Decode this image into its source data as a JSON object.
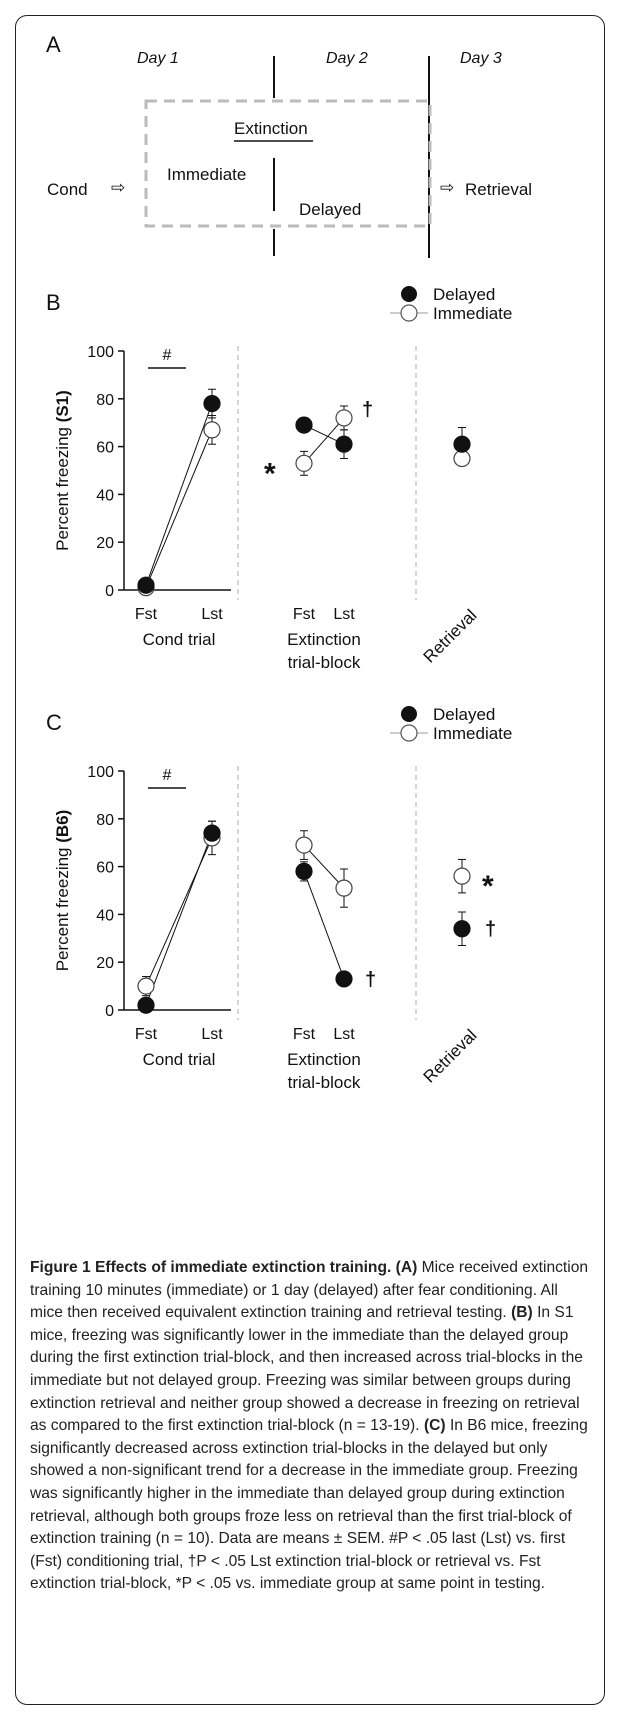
{
  "diagram": {
    "panel_label": "A",
    "day1": "Day 1",
    "day2": "Day 2",
    "day3": "Day 3",
    "extinction": "Extinction",
    "immediate": "Immediate",
    "delayed": "Delayed",
    "cond": "Cond",
    "retrieval": "Retrieval",
    "arrow": "⇨"
  },
  "chart_data": [
    {
      "type": "line",
      "panel_label": "B",
      "ylabel": "Percent freezing",
      "ylabel_strain": "(S1)",
      "ylim": [
        0,
        100
      ],
      "yticks": [
        0,
        20,
        40,
        60,
        80,
        100
      ],
      "groups": [
        {
          "name": "Cond trial",
          "ticks": [
            "Fst",
            "Lst"
          ]
        },
        {
          "name": "Extinction trial-block",
          "ticks": [
            "Fst",
            "Lst"
          ]
        },
        {
          "name": "Retrieval",
          "ticks": []
        }
      ],
      "series": [
        {
          "name": "Delayed",
          "marker": "filled",
          "cond": [
            2,
            78
          ],
          "cond_err": [
            1,
            6
          ],
          "ext": [
            69,
            61
          ],
          "ext_err": [
            3,
            6
          ],
          "ret": 61,
          "ret_err": 7
        },
        {
          "name": "Immediate",
          "marker": "open",
          "cond": [
            1,
            67
          ],
          "cond_err": [
            1,
            6
          ],
          "ext": [
            53,
            72
          ],
          "ext_err": [
            5,
            5
          ],
          "ret": 55,
          "ret_err": 3
        }
      ],
      "annotations": {
        "cond_hash": "#",
        "ext_immediate": "†",
        "ext_star": "*"
      }
    },
    {
      "type": "line",
      "panel_label": "C",
      "ylabel": "Percent freezing",
      "ylabel_strain": "(B6)",
      "ylim": [
        0,
        100
      ],
      "yticks": [
        0,
        20,
        40,
        60,
        80,
        100
      ],
      "groups": [
        {
          "name": "Cond trial",
          "ticks": [
            "Fst",
            "Lst"
          ]
        },
        {
          "name": "Extinction trial-block",
          "ticks": [
            "Fst",
            "Lst"
          ]
        },
        {
          "name": "Retrieval",
          "ticks": []
        }
      ],
      "series": [
        {
          "name": "Delayed",
          "marker": "filled",
          "cond": [
            2,
            74
          ],
          "cond_err": [
            1,
            5
          ],
          "ext": [
            58,
            13
          ],
          "ext_err": [
            4,
            2
          ],
          "ret": 34,
          "ret_err": 7
        },
        {
          "name": "Immediate",
          "marker": "open",
          "cond": [
            10,
            72
          ],
          "cond_err": [
            4,
            7
          ],
          "ext": [
            69,
            51
          ],
          "ext_err": [
            6,
            8
          ],
          "ret": 56,
          "ret_err": 7
        }
      ],
      "annotations": {
        "cond_hash": "#",
        "ext_delayed": "†",
        "ret_delayed": "†",
        "ret_immediate": "*"
      }
    }
  ],
  "caption": {
    "title": "Figure 1 Effects of immediate extinction training.",
    "a_label": "(A)",
    "a_text": "Mice received extinction training 10 minutes (immediate) or 1 day (delayed) after fear conditioning. All mice then received equivalent extinction training and retrieval testing.",
    "b_label": "(B)",
    "b_text": "In S1 mice, freezing was significantly lower in the immediate than the delayed group during the first extinction trial-block, and then increased across trial-blocks in the immediate but not delayed group. Freezing was similar between groups during extinction retrieval and neither group showed a decrease in freezing on retrieval as compared to the first extinction trial-block (n = 13-19).",
    "c_label": "(C)",
    "c_text": "In B6 mice, freezing significantly decreased across extinction trial-blocks in the delayed but only showed a non-significant trend for a decrease in the immediate group. Freezing was significantly higher in the immediate than delayed group during extinction retrieval, although both groups froze less on retrieval than the first trial-block of extinction training (n = 10). Data are means ± SEM. #P < .05 last (Lst) vs. first (Fst) conditioning trial, †P < .05 Lst extinction trial-block or retrieval vs. Fst extinction trial-block, *P < .05 vs. immediate group at same point in testing."
  }
}
